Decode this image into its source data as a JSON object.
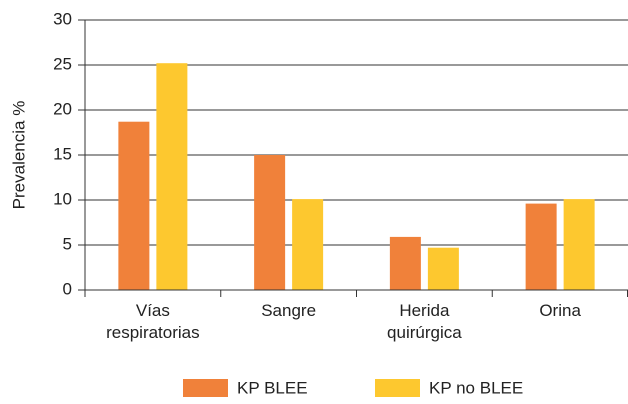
{
  "chart_data": {
    "type": "bar",
    "y_label": "Prevalencia %",
    "categories": [
      "Vías respiratorias",
      "Sangre",
      "Herida quirúrgica",
      "Orina"
    ],
    "series": [
      {
        "name": "KP BLEE",
        "color": "#f0813a",
        "values": [
          18.7,
          15.0,
          5.9,
          9.6
        ]
      },
      {
        "name": "KP no BLEE",
        "color": "#fdc82f",
        "values": [
          25.2,
          10.1,
          4.7,
          10.1
        ]
      }
    ],
    "ylim": [
      0,
      30
    ],
    "yticks": [
      0,
      5,
      10,
      15,
      20,
      25,
      30
    ],
    "grid": true,
    "legend": "bottom"
  }
}
